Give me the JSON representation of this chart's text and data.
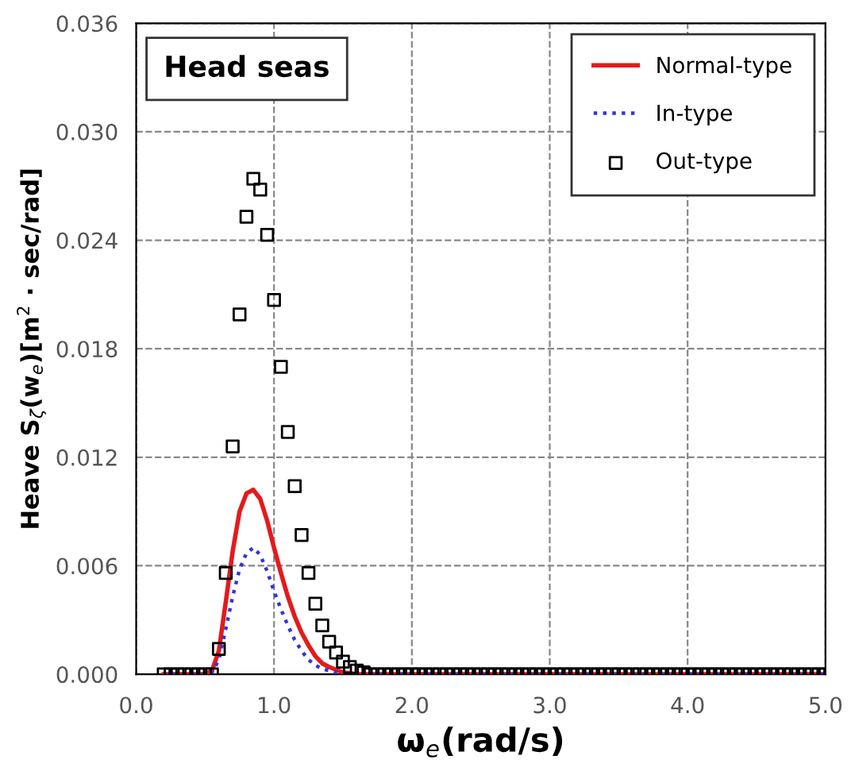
{
  "chart_data": {
    "type": "line",
    "xlabel": "ω$_{e}$(rad/s)",
    "ylabel": "Heave S$_{ζ}$(w$_{e}$)[m$^{2}$ · sec/rad]",
    "annotations": [
      "Head seas"
    ],
    "xlim": [
      0.0,
      5.0
    ],
    "xticks": [
      {
        "value": 0,
        "label": "0.0"
      },
      {
        "value": 1,
        "label": "1.0"
      },
      {
        "value": 2,
        "label": "2.0"
      },
      {
        "value": 3,
        "label": "3.0"
      },
      {
        "value": 4,
        "label": "4.0"
      },
      {
        "value": 5,
        "label": "5.0"
      }
    ],
    "ylim": [
      0.0,
      0.036
    ],
    "yticks": [
      {
        "value": 0,
        "label": "0.000"
      },
      {
        "value": 0.006,
        "label": "0.006"
      },
      {
        "value": 0.012,
        "label": "0.012"
      },
      {
        "value": 0.018,
        "label": "0.018"
      },
      {
        "value": 0.024,
        "label": "0.024"
      },
      {
        "value": 0.03,
        "label": "0.030"
      },
      {
        "value": 0.036,
        "label": "0.036"
      }
    ],
    "grid": true,
    "legend": "top right",
    "series": [
      {
        "name": "Normal-type",
        "color": "#e41a1c",
        "line_style": "solid",
        "marker": "none",
        "x": [
          0.2,
          0.5,
          0.55,
          0.6,
          0.65,
          0.7,
          0.75,
          0.8,
          0.85,
          0.9,
          0.95,
          1.0,
          1.05,
          1.1,
          1.15,
          1.2,
          1.25,
          1.3,
          1.35,
          1.4,
          1.5,
          1.6,
          5.0
        ],
        "values": [
          0,
          0,
          0.0002,
          0.0013,
          0.004,
          0.0068,
          0.009,
          0.01,
          0.0102,
          0.0097,
          0.0085,
          0.007,
          0.0056,
          0.0043,
          0.0032,
          0.0023,
          0.0016,
          0.001,
          0.0006,
          0.0004,
          0.0001,
          0,
          0
        ]
      },
      {
        "name": "In-type",
        "color": "#3333dd",
        "line_style": "dotted",
        "marker": "none",
        "x": [
          0.2,
          0.5,
          0.55,
          0.6,
          0.65,
          0.7,
          0.75,
          0.8,
          0.85,
          0.9,
          0.95,
          1.0,
          1.05,
          1.1,
          1.15,
          1.2,
          1.25,
          1.3,
          1.35,
          1.4,
          1.5,
          5.0
        ],
        "values": [
          0,
          0,
          0.0001,
          0.0008,
          0.0025,
          0.0043,
          0.0058,
          0.0067,
          0.007,
          0.0066,
          0.0057,
          0.0046,
          0.0036,
          0.0027,
          0.0019,
          0.0013,
          0.0008,
          0.0005,
          0.0003,
          0.0002,
          0,
          0
        ]
      },
      {
        "name": "Out-type",
        "color": "#000000",
        "type": "scatter",
        "marker": "square",
        "x": [
          0.2,
          0.25,
          0.3,
          0.35,
          0.4,
          0.45,
          0.5,
          0.55,
          0.6,
          0.65,
          0.7,
          0.75,
          0.8,
          0.85,
          0.9,
          0.95,
          1.0,
          1.05,
          1.1,
          1.15,
          1.2,
          1.25,
          1.3,
          1.35,
          1.4,
          1.45,
          1.5,
          1.55,
          1.6,
          1.65,
          1.7,
          1.75,
          1.8,
          1.85,
          1.9,
          1.95,
          2.0,
          2.05,
          2.1,
          2.15,
          2.2,
          2.25,
          2.3,
          2.35,
          2.4,
          2.45,
          2.5,
          2.55,
          2.6,
          2.65,
          2.7,
          2.75,
          2.8,
          2.85,
          2.9,
          2.95,
          3.0,
          3.05,
          3.1,
          3.15,
          3.2,
          3.25,
          3.3,
          3.35,
          3.4,
          3.45,
          3.5,
          3.55,
          3.6,
          3.65,
          3.7,
          3.75,
          3.8,
          3.85,
          3.9,
          3.95,
          4.0,
          4.05,
          4.1,
          4.15,
          4.2,
          4.25,
          4.3,
          4.35,
          4.4,
          4.45,
          4.5,
          4.55,
          4.6,
          4.65,
          4.7,
          4.75,
          4.8,
          4.85,
          4.9,
          4.95,
          5.0
        ],
        "values": [
          0,
          0,
          0,
          0,
          0,
          0,
          0,
          0,
          0.0014,
          0.0056,
          0.0126,
          0.0199,
          0.0253,
          0.0274,
          0.0268,
          0.0243,
          0.0207,
          0.017,
          0.0134,
          0.0104,
          0.0077,
          0.0056,
          0.0039,
          0.0027,
          0.0018,
          0.0012,
          0.0007,
          0.0004,
          0.0002,
          0.0001,
          0,
          0,
          0,
          0,
          0,
          0,
          0,
          0,
          0,
          0,
          0,
          0,
          0,
          0,
          0,
          0,
          0,
          0,
          0,
          0,
          0,
          0,
          0,
          0,
          0,
          0,
          0,
          0,
          0,
          0,
          0,
          0,
          0,
          0,
          0,
          0,
          0,
          0,
          0,
          0,
          0,
          0,
          0,
          0,
          0,
          0,
          0,
          0,
          0,
          0,
          0,
          0,
          0,
          0,
          0,
          0,
          0,
          0,
          0,
          0,
          0,
          0,
          0,
          0,
          0,
          0,
          0
        ]
      }
    ]
  }
}
